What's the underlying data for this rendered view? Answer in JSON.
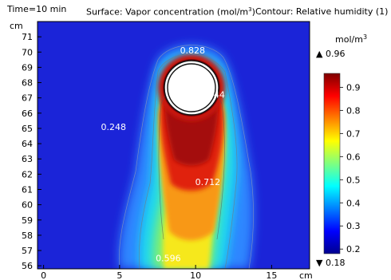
{
  "header": {
    "time_label": "Time=10 min",
    "surface_prefix": "Surface: Vapor concentration (mol/m",
    "surface_suffix": ")",
    "contour_label": "Contour: Relative humidity (1)",
    "superscript": "3"
  },
  "chart_data": {
    "type": "heatmap",
    "title": "Surface: Vapor concentration (mol/m3)  Contour: Relative humidity (1)",
    "xlabel": "cm",
    "ylabel": "cm",
    "x_ticks": [
      0,
      5,
      10,
      15
    ],
    "y_ticks": [
      56,
      57,
      58,
      59,
      60,
      61,
      62,
      63,
      64,
      65,
      66,
      67,
      68,
      69,
      70,
      71
    ],
    "xlim": [
      -0.4,
      17.5
    ],
    "ylim": [
      55.8,
      72
    ],
    "circle_center": [
      9.0,
      68.2
    ],
    "circle_radius": 1.6,
    "contour_labels": [
      {
        "value": "0.828",
        "x": 9.8,
        "y": 69.9
      },
      {
        "value": "0.944",
        "x": 11.1,
        "y": 67.0
      },
      {
        "value": "0.248",
        "x": 4.6,
        "y": 64.9
      },
      {
        "value": "0.712",
        "x": 10.8,
        "y": 61.3
      },
      {
        "value": "0.596",
        "x": 8.2,
        "y": 56.3
      }
    ],
    "colorbar": {
      "unit": "mol/m",
      "unit_sup": "3",
      "max_label": "▲ 0.96",
      "min_label": "▼ 0.18",
      "range": [
        0.18,
        0.96
      ],
      "ticks": [
        0.9,
        0.8,
        0.7,
        0.6,
        0.5,
        0.4,
        0.3,
        0.2
      ]
    }
  }
}
